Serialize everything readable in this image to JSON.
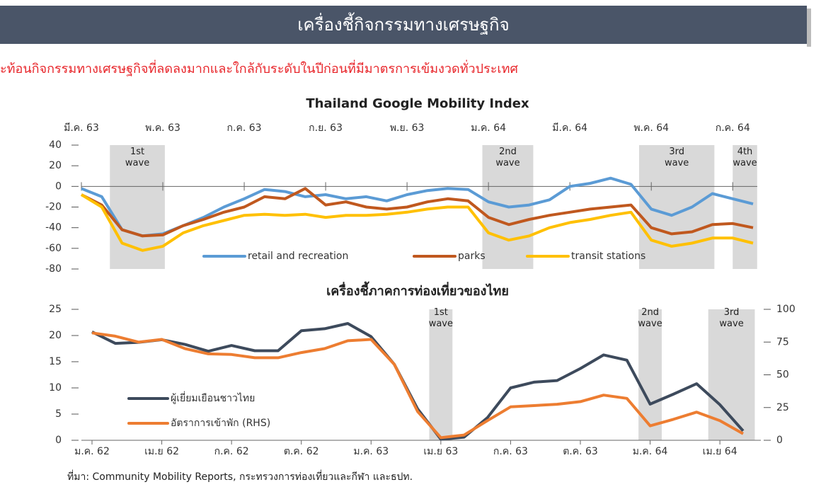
{
  "header": {
    "title": "เครื่องชี้กิจกรรมทางเศรษฐกิจ",
    "subtitle": "ะท้อนกิจกรรมทางเศรษฐกิจที่ลดลงมากและใกล้กับระดับในปีก่อนที่มีมาตรการเข้มงวดทั่วประเทศ"
  },
  "chart_data": [
    {
      "type": "line",
      "title": "Thailand Google Mobility Index",
      "xaxis_position": "top",
      "categories": [
        "มี.ค. 63",
        null,
        null,
        null,
        "พ.ค. 63",
        null,
        null,
        null,
        "ก.ค. 63",
        null,
        null,
        null,
        "ก.ย. 63",
        null,
        null,
        null,
        "พ.ย. 63",
        null,
        null,
        null,
        "ม.ค. 64",
        null,
        null,
        null,
        "มี.ค. 64",
        null,
        null,
        null,
        "พ.ค. 64",
        null,
        null,
        null,
        "ก.ค. 64",
        null
      ],
      "series": [
        {
          "name": "retail and recreation",
          "color": "#5b9bd5",
          "values": [
            -2,
            -10,
            -42,
            -48,
            -46,
            -38,
            -30,
            -20,
            -12,
            -3,
            -5,
            -10,
            -8,
            -12,
            -10,
            -14,
            -8,
            -4,
            -2,
            -3,
            -15,
            -20,
            -18,
            -13,
            0,
            3,
            8,
            2,
            -22,
            -28,
            -20,
            -7,
            -12,
            -17
          ]
        },
        {
          "name": "parks",
          "color": "#c0581e",
          "values": [
            -8,
            -18,
            -42,
            -48,
            -47,
            -38,
            -32,
            -25,
            -20,
            -10,
            -12,
            -2,
            -18,
            -15,
            -20,
            -22,
            -20,
            -15,
            -12,
            -14,
            -30,
            -37,
            -32,
            -28,
            -25,
            -22,
            -20,
            -18,
            -40,
            -46,
            -44,
            -37,
            -36,
            -40
          ]
        },
        {
          "name": "transit stations",
          "color": "#ffc000",
          "values": [
            -8,
            -20,
            -55,
            -62,
            -58,
            -45,
            -38,
            -33,
            -28,
            -27,
            -28,
            -27,
            -30,
            -28,
            -28,
            -27,
            -25,
            -22,
            -20,
            -20,
            -45,
            -52,
            -48,
            -40,
            -35,
            -32,
            -28,
            -25,
            -52,
            -58,
            -55,
            -50,
            -50,
            -55
          ]
        }
      ],
      "ylim": [
        -80,
        40
      ],
      "yticks": [
        -80,
        -60,
        -40,
        -20,
        0,
        20,
        40
      ],
      "bands": [
        {
          "label": [
            "1st",
            "wave"
          ],
          "start": 1.4,
          "end": 4.1
        },
        {
          "label": [
            "2nd",
            "wave"
          ],
          "start": 19.7,
          "end": 22.2
        },
        {
          "label": [
            "3rd",
            "wave"
          ],
          "start": 27.4,
          "end": 31.1
        },
        {
          "label": [
            "4th",
            "wave"
          ],
          "start": 32,
          "end": 33.2
        }
      ]
    },
    {
      "type": "line",
      "title": "เครื่องชี้ภาคการท่องเที่ยวของไทย",
      "xaxis_position": "bottom",
      "categories": [
        "ม.ค. 62",
        null,
        null,
        "เม.ย 62",
        null,
        null,
        "ก.ค. 62",
        null,
        null,
        "ต.ค. 62",
        null,
        null,
        "ม.ค. 63",
        null,
        null,
        "เม.ย 63",
        null,
        null,
        "ก.ค. 63",
        null,
        null,
        "ต.ค. 63",
        null,
        null,
        "ม.ค. 64",
        null,
        null,
        "เม.ย 64",
        null
      ],
      "series": [
        {
          "name": "ผู้เยี่ยมเยือนชาวไทย",
          "color": "#3d4a5c",
          "values": [
            20.7,
            18.5,
            18.7,
            19.2,
            18.3,
            17,
            18.1,
            17.1,
            17.1,
            20.9,
            21.3,
            22.3,
            19.8,
            14.5,
            6,
            0.2,
            0.6,
            4.3,
            10,
            11.1,
            11.4,
            13.7,
            16.3,
            15.3,
            6.9,
            8.8,
            10.8,
            6.8,
            1.8
          ]
        },
        {
          "name": "อัตราการเข้าพัก (RHS)",
          "color": "#ed7d31",
          "axis": "y2",
          "values": [
            82,
            79.5,
            75,
            77,
            70,
            66,
            65.5,
            63,
            63,
            67,
            70,
            76,
            77,
            58,
            22,
            2,
            4,
            15,
            25.5,
            26.5,
            27.5,
            29.5,
            34.5,
            32,
            11,
            16,
            21.5,
            15,
            5
          ]
        }
      ],
      "ylim": [
        0,
        25
      ],
      "yticks": [
        0,
        5,
        10,
        15,
        20,
        25
      ],
      "y2lim": [
        0,
        100
      ],
      "y2ticks": [
        0,
        25,
        50,
        75,
        100
      ],
      "bands": [
        {
          "label": [
            "1st",
            "wave"
          ],
          "start": 14.5,
          "end": 15.5
        },
        {
          "label": [
            "2nd",
            "wave"
          ],
          "start": 23.5,
          "end": 24.5
        },
        {
          "label": [
            "3rd",
            "wave"
          ],
          "start": 26.5,
          "end": 28.5
        }
      ]
    }
  ],
  "footer": {
    "source": "ที่มา: Community Mobility Reports, กระทรวงการท่องเที่ยวและกีฬา และธปท."
  }
}
